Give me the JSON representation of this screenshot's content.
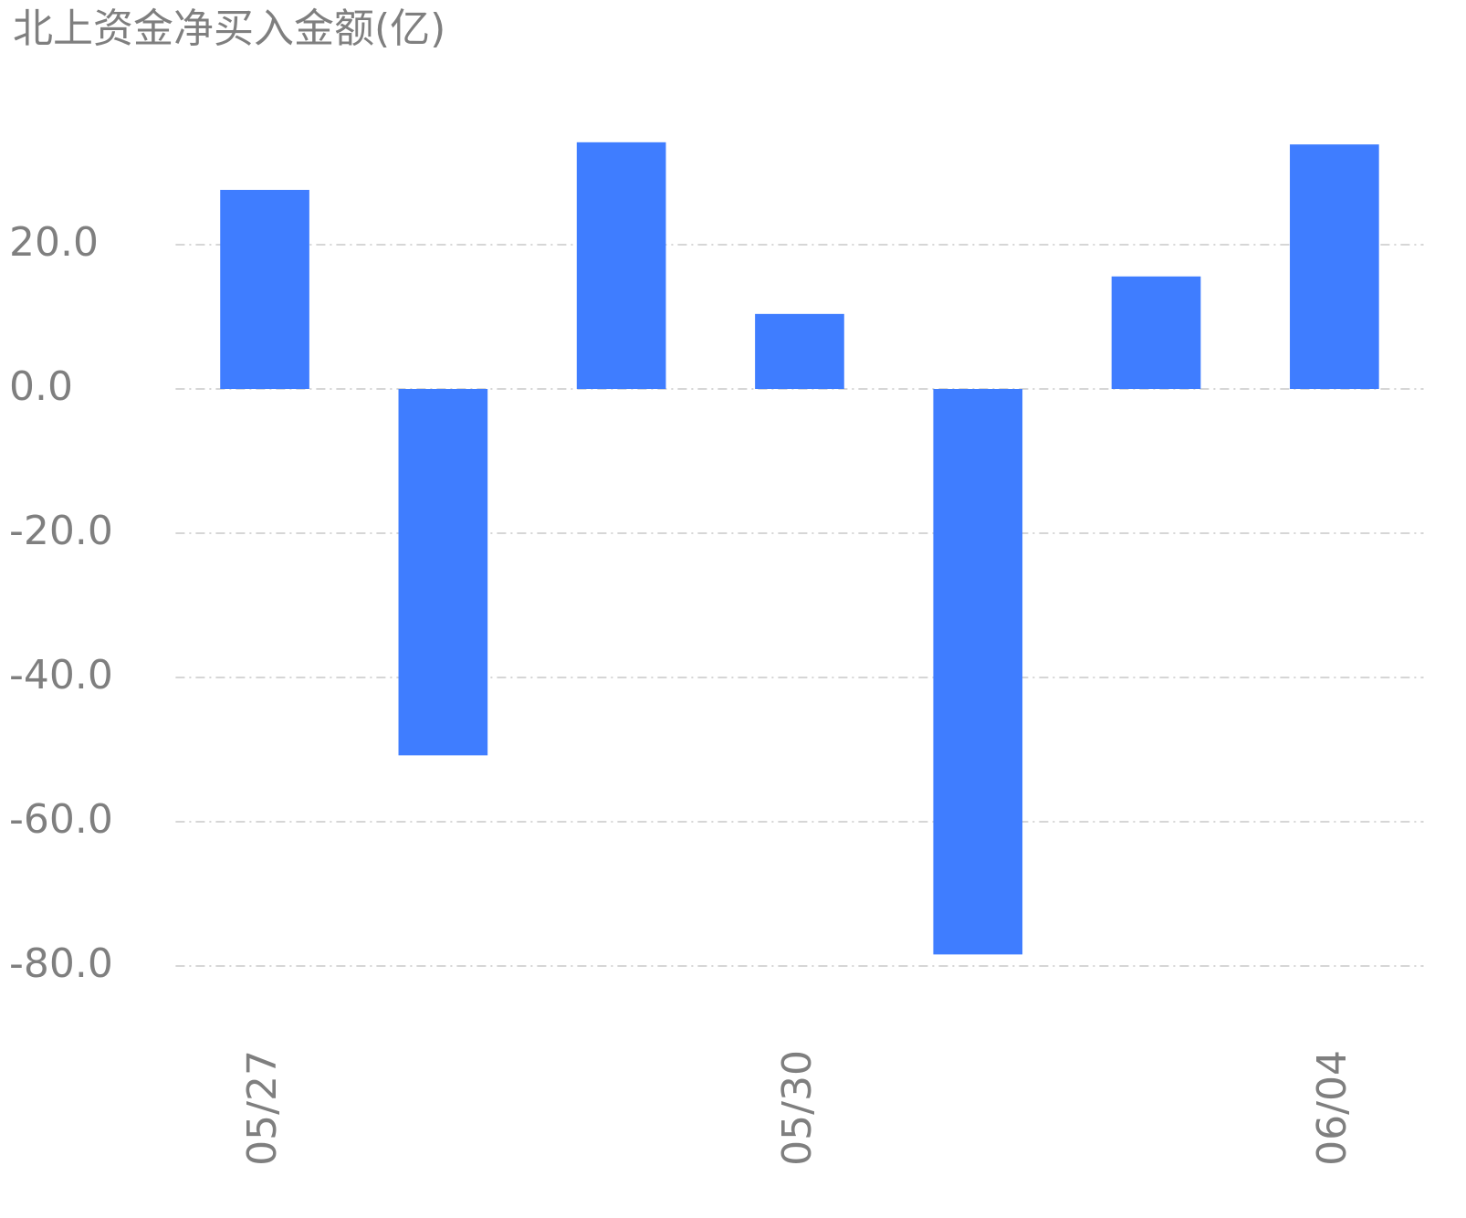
{
  "chart_data": {
    "type": "bar",
    "title": "北上资金净买入金额(亿)",
    "categories": [
      "05/27",
      null,
      null,
      "05/30",
      null,
      null,
      "06/04"
    ],
    "values": [
      27.6,
      -50.8,
      34.2,
      10.4,
      -78.4,
      15.6,
      33.9
    ],
    "color": "#3f7dff",
    "ylim": [
      -80,
      40
    ],
    "yticks": [
      {
        "value": -80,
        "label": "-80.0"
      },
      {
        "value": -60,
        "label": "-60.0"
      },
      {
        "value": -40,
        "label": "-40.0"
      },
      {
        "value": -20,
        "label": "-20.0"
      },
      {
        "value": 0,
        "label": "0.0"
      },
      {
        "value": 20,
        "label": "20.0"
      }
    ],
    "grid": true
  }
}
